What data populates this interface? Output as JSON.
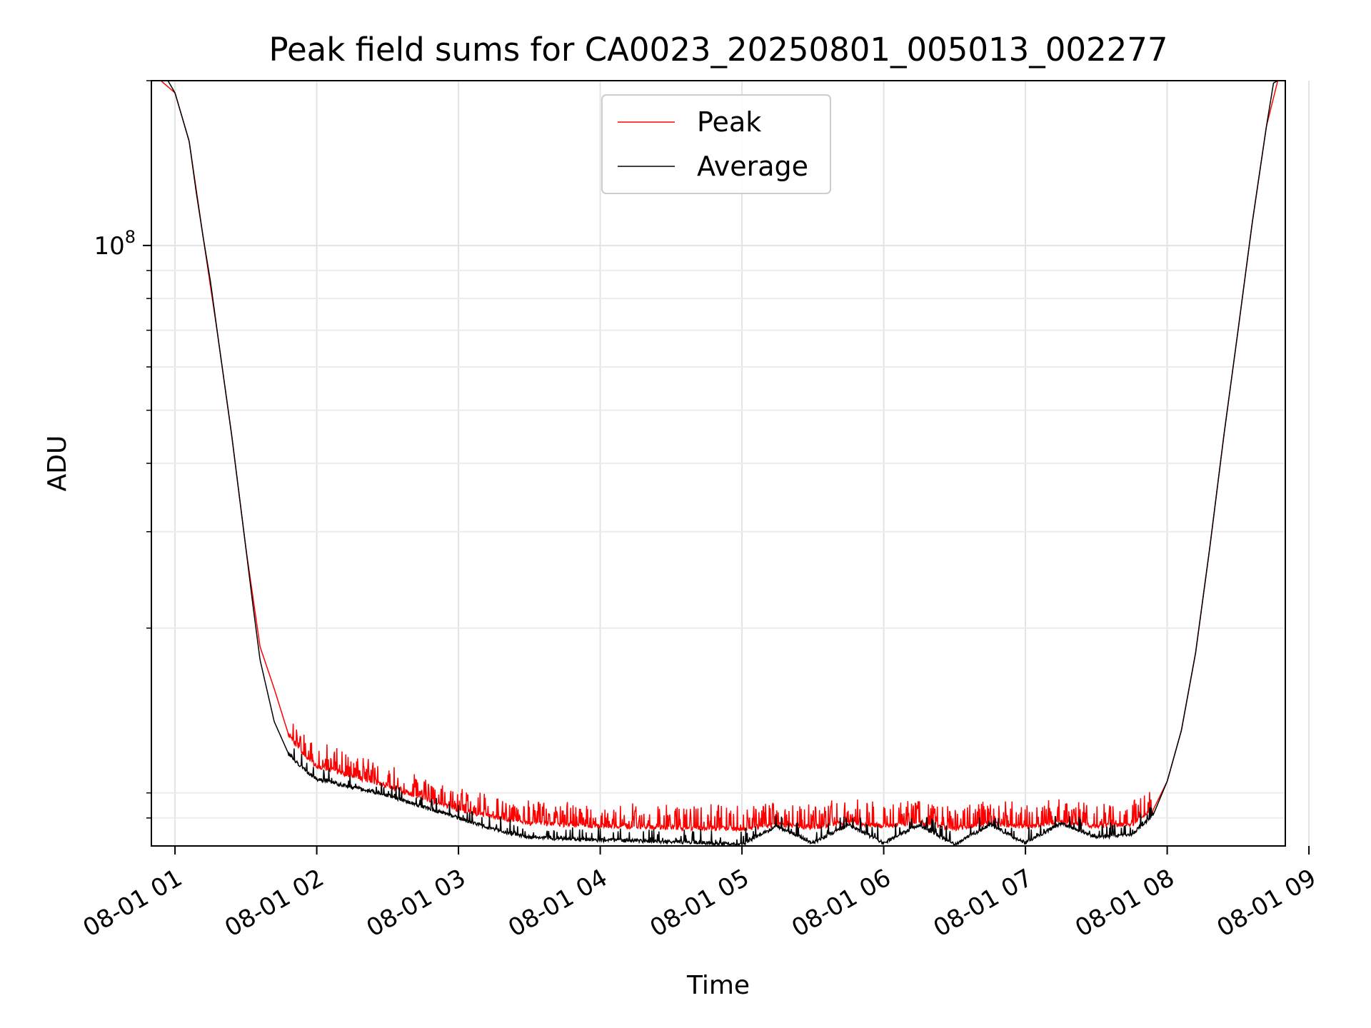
{
  "chart_data": {
    "type": "line",
    "title": "Peak field sums for CA0023_20250801_005013_002277",
    "xlabel": "Time",
    "ylabel": "ADU",
    "x_axis": {
      "type": "datetime",
      "range": [
        "08-01 00:50",
        "08-01 08:50"
      ],
      "tick_labels": [
        "08-01 01",
        "08-01 02",
        "08-01 03",
        "08-01 04",
        "08-01 05",
        "08-01 06",
        "08-01 07",
        "08-01 08",
        "08-01 09"
      ],
      "tick_values_hours": [
        1,
        2,
        3,
        4,
        5,
        6,
        7,
        8,
        9
      ],
      "tick_rotation_deg": 30
    },
    "y_axis": {
      "scale": "log",
      "ylim": [
        8000000,
        200000000
      ],
      "major_ticks": [
        {
          "value": 100000000,
          "label": "10",
          "exp": "8"
        }
      ],
      "minor_ticks": [
        9000000,
        10000000,
        20000000,
        30000000,
        40000000,
        50000000,
        60000000,
        70000000,
        80000000,
        90000000,
        200000000
      ]
    },
    "grid": true,
    "legend": {
      "placement": "upper center",
      "entries": [
        {
          "label": "Peak",
          "color": "#ff0000"
        },
        {
          "label": "Average",
          "color": "#000000"
        }
      ]
    },
    "series": [
      {
        "name": "Average",
        "color": "#000000",
        "x_hours": [
          0.83,
          0.87,
          0.9,
          0.95,
          1.0,
          1.1,
          1.15,
          1.2,
          1.25,
          1.3,
          1.4,
          1.5,
          1.55,
          1.6,
          1.7,
          1.8,
          1.9,
          2.0,
          2.5,
          3.0,
          3.3,
          3.5,
          4.0,
          4.5,
          5.0,
          5.25,
          5.5,
          5.75,
          6.0,
          6.25,
          6.5,
          6.75,
          7.0,
          7.25,
          7.5,
          7.75,
          7.9,
          8.0,
          8.1,
          8.2,
          8.3,
          8.4,
          8.5,
          8.6,
          8.7,
          8.75,
          8.78
        ],
        "y": [
          200000000,
          200000000,
          200000000,
          200000000,
          190000000,
          155000000,
          125000000,
          103000000,
          86000000,
          69000000,
          45000000,
          28000000,
          22000000,
          17500000,
          13500000,
          11800000,
          11100000,
          10600000,
          9900000,
          9000000,
          8500000,
          8300000,
          8200000,
          8150000,
          8050000,
          8700000,
          8100000,
          8750000,
          8100000,
          8750000,
          8050000,
          8750000,
          8100000,
          8800000,
          8300000,
          8400000,
          9100000,
          10500000,
          13000000,
          18000000,
          28000000,
          45000000,
          70000000,
          110000000,
          165000000,
          198000000,
          200000000
        ]
      },
      {
        "name": "Peak",
        "color": "#ff0000",
        "x_hours": [
          0.83,
          0.9,
          1.0,
          1.1,
          1.2,
          1.3,
          1.4,
          1.5,
          1.6,
          1.7,
          1.8,
          1.9,
          2.0,
          2.5,
          3.0,
          3.5,
          4.0,
          4.5,
          5.0,
          5.25,
          5.5,
          5.75,
          6.0,
          6.25,
          6.5,
          6.75,
          7.0,
          7.25,
          7.5,
          7.75,
          7.9,
          8.0,
          8.1,
          8.2,
          8.3,
          8.4,
          8.5,
          8.6,
          8.7,
          8.78
        ],
        "y": [
          200000000,
          200000000,
          190000000,
          155000000,
          103000000,
          69000000,
          45000000,
          28000000,
          18500000,
          15500000,
          12800000,
          11800000,
          11200000,
          10300000,
          9300000,
          8800000,
          8700000,
          8650000,
          8600000,
          8750000,
          8650000,
          8850000,
          8700000,
          8800000,
          8600000,
          8800000,
          8650000,
          8850000,
          8700000,
          8750000,
          9300000,
          10500000,
          13000000,
          18000000,
          28000000,
          45000000,
          70000000,
          110000000,
          165000000,
          200000000
        ]
      }
    ]
  }
}
